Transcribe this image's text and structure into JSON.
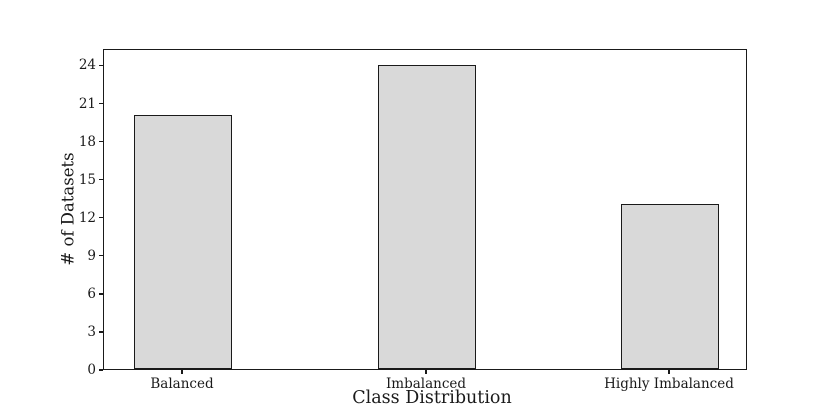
{
  "chart_data": {
    "type": "bar",
    "title": "",
    "xlabel": "Class Distribution",
    "ylabel": "# of Datasets",
    "categories": [
      "Balanced",
      "Imbalanced",
      "Highly Imbalanced"
    ],
    "values": [
      20,
      24,
      13
    ],
    "yticks": [
      0,
      3,
      6,
      9,
      12,
      15,
      18,
      21,
      24
    ],
    "ylim": [
      0,
      25.3
    ],
    "grid": false,
    "legend": "none",
    "colors": {
      "bar_fill": "#d9d9d9",
      "bar_edge": "#1a1a1a",
      "spine": "#1a1a1a",
      "text": "#1a1a1a",
      "background": "#ffffff"
    }
  }
}
